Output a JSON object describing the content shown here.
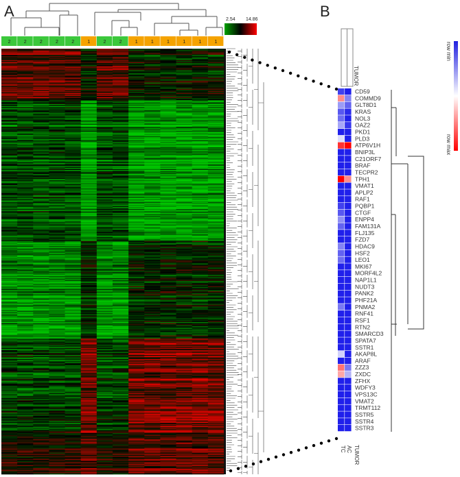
{
  "chart_data": [
    {
      "type": "heatmap",
      "panel_label": "A",
      "color_scale": {
        "min_label": "2.54",
        "max_label": "14.86",
        "low_color": "#00a000",
        "mid_color": "#000000",
        "high_color": "#ff0000"
      },
      "sample_groups": [
        "2",
        "2",
        "2",
        "2",
        "2",
        "1",
        "2",
        "2",
        "1",
        "1",
        "1",
        "1",
        "1",
        "1"
      ],
      "group_colors": {
        "1": "#f5a300",
        "2": "#3cc83c"
      }
    },
    {
      "type": "heatmap",
      "panel_label": "B",
      "legend": {
        "top_label": "row min",
        "bottom_label": "row max",
        "top_color": "#2020e0",
        "bottom_color": "#ff0000"
      },
      "column_header": "TUMOR",
      "footer_labels": {
        "tumor": "TUMOR",
        "ac": "AC",
        "tc": "TC"
      },
      "genes": [
        "CD59",
        "COMMD9",
        "GLT8D1",
        "KRAS",
        "NOL3",
        "OAZ2",
        "PKD1",
        "PLD3",
        "ATP6V1H",
        "BNIP3L",
        "C21ORF7",
        "BRAF",
        "TECPR2",
        "TPH1",
        "VMAT1",
        "APLP2",
        "RAF1",
        "PQBP1",
        "CTGF",
        "ENPP4",
        "FAM131A",
        "FLJ135",
        "FZD7",
        "HDAC9",
        "HSF2",
        "LEO1",
        "MKI67",
        "MORF4L2",
        "NAP1L1",
        "NUDT3",
        "PANK2",
        "PHF21A",
        "PNMA2",
        "RNF41",
        "RSF1",
        "RTN2",
        "SMARCD3",
        "SPATA7",
        "SSTR1",
        "AKAP8L",
        "ARAF",
        "ZZZ3",
        "ZXDC",
        "ZFHX",
        "WDFY3",
        "VPS13C",
        "VMAT2",
        "TRMT112",
        "SSTR5",
        "SSTR4",
        "SSTR3"
      ],
      "ac_values": [
        1.0,
        0.55,
        0.7,
        0.95,
        1.0,
        0.9,
        1.0,
        1.0,
        -1.0,
        1.0,
        1.0,
        1.0,
        1.0,
        -0.45,
        1.0,
        1.0,
        1.0,
        1.0,
        1.0,
        1.0,
        1.0,
        1.0,
        1.0,
        1.0,
        1.0,
        1.0,
        1.0,
        1.0,
        1.0,
        1.0,
        1.0,
        1.0,
        1.0,
        1.0,
        1.0,
        1.0,
        1.0,
        1.0,
        1.0,
        1.0,
        1.0,
        0.6,
        0.35,
        1.0,
        1.0,
        1.0,
        1.0,
        1.0,
        1.0,
        1.0,
        1.0
      ],
      "tc_values": [
        0.85,
        -0.45,
        0.45,
        0.75,
        0.65,
        0.4,
        1.0,
        0.15,
        -0.8,
        1.0,
        1.0,
        1.0,
        1.0,
        -1.0,
        1.0,
        1.0,
        1.0,
        0.85,
        0.75,
        0.5,
        0.7,
        1.0,
        1.0,
        0.55,
        0.7,
        0.65,
        1.0,
        1.0,
        1.0,
        1.0,
        1.0,
        1.0,
        0.6,
        1.0,
        1.0,
        1.0,
        1.0,
        1.0,
        1.0,
        0.2,
        1.0,
        -0.55,
        -0.35,
        1.0,
        1.0,
        1.0,
        1.0,
        1.0,
        1.0,
        1.0,
        1.0
      ]
    }
  ]
}
